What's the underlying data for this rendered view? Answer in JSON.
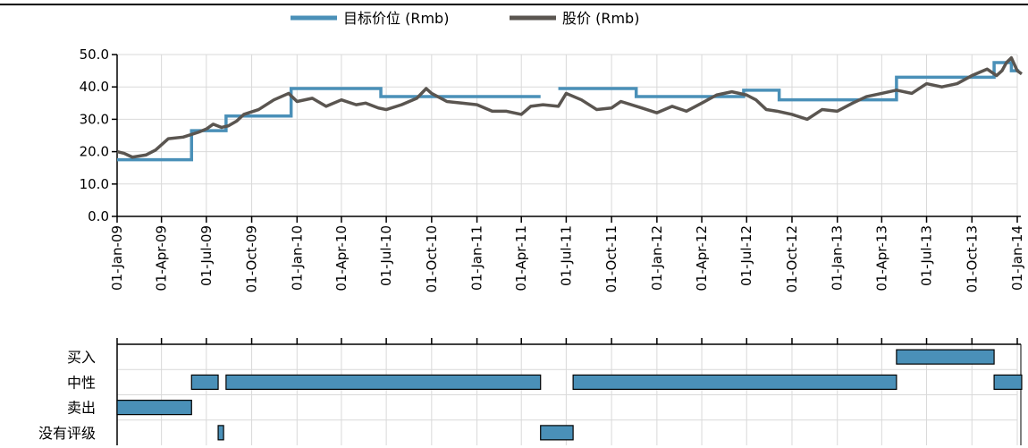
{
  "chart_data": [
    {
      "type": "line",
      "legend": [
        {
          "name": "目标价位 (Rmb)",
          "color": "#4a90b8"
        },
        {
          "name": "股价 (Rmb)",
          "color": "#5a5550"
        }
      ],
      "legend_position": "top-center",
      "ylim": [
        0,
        50
      ],
      "y_ticks": [
        "0.0",
        "10.0",
        "20.0",
        "30.0",
        "40.0",
        "50.0"
      ],
      "y_tick_values": [
        0,
        10,
        20,
        30,
        40,
        50
      ],
      "x_range": [
        "2009-01-01",
        "2014-01-01"
      ],
      "x_tick_dates": [
        "2009-01-01",
        "2009-04-01",
        "2009-07-01",
        "2009-10-01",
        "2010-01-01",
        "2010-04-01",
        "2010-07-01",
        "2010-10-01",
        "2011-01-01",
        "2011-04-01",
        "2011-07-01",
        "2011-10-01",
        "2012-01-01",
        "2012-04-01",
        "2012-07-01",
        "2012-10-01",
        "2013-01-01",
        "2013-04-01",
        "2013-07-01",
        "2013-10-01",
        "2014-01-01"
      ],
      "x_ticks": [
        "01-Jan-09",
        "01-Apr-09",
        "01-Jul-09",
        "01-Oct-09",
        "01-Jan-10",
        "01-Apr-10",
        "01-Jul-10",
        "01-Oct-10",
        "01-Jan-11",
        "01-Apr-11",
        "01-Jul-11",
        "01-Oct-11",
        "01-Jan-12",
        "01-Apr-12",
        "01-Jul-12",
        "01-Oct-12",
        "01-Jan-13",
        "01-Apr-13",
        "01-Jul-13",
        "01-Oct-13",
        "01-Jan-14"
      ],
      "grid": true,
      "series": [
        {
          "name": "目标价位 (Rmb)",
          "step": true,
          "segments": [
            {
              "start": "2009-01-01",
              "end": "2009-06-01",
              "value": 17.5
            },
            {
              "start": "2009-06-01",
              "end": "2009-08-10",
              "value": 26.5
            },
            {
              "start": "2009-08-10",
              "end": "2009-12-20",
              "value": 31.0
            },
            {
              "start": "2009-12-20",
              "end": "2010-06-20",
              "value": 39.5
            },
            {
              "start": "2010-06-20",
              "end": "2011-05-10",
              "value": 37.0
            },
            {
              "start": "2011-06-15",
              "end": "2011-11-20",
              "value": 39.5
            },
            {
              "start": "2011-11-20",
              "end": "2012-06-25",
              "value": 37.0
            },
            {
              "start": "2012-06-25",
              "end": "2012-09-05",
              "value": 39.0
            },
            {
              "start": "2012-09-05",
              "end": "2013-05-01",
              "value": 36.0
            },
            {
              "start": "2013-05-01",
              "end": "2013-11-15",
              "value": 43.0
            },
            {
              "start": "2013-11-15",
              "end": "2013-12-20",
              "value": 47.5
            },
            {
              "start": "2013-12-20",
              "end": "2014-01-05",
              "value": 45.0
            }
          ]
        },
        {
          "name": "股价 (Rmb)",
          "x": [
            "2009-01-01",
            "2009-01-15",
            "2009-02-01",
            "2009-03-01",
            "2009-03-20",
            "2009-04-15",
            "2009-05-15",
            "2009-06-15",
            "2009-07-01",
            "2009-07-15",
            "2009-08-01",
            "2009-08-15",
            "2009-09-01",
            "2009-09-15",
            "2009-10-15",
            "2009-11-15",
            "2009-12-15",
            "2010-01-01",
            "2010-02-01",
            "2010-03-01",
            "2010-04-01",
            "2010-05-01",
            "2010-05-20",
            "2010-06-15",
            "2010-07-01",
            "2010-08-01",
            "2010-09-01",
            "2010-09-20",
            "2010-10-01",
            "2010-11-01",
            "2010-12-01",
            "2011-01-01",
            "2011-02-01",
            "2011-03-01",
            "2011-04-01",
            "2011-04-20",
            "2011-05-15",
            "2011-06-15",
            "2011-07-01",
            "2011-08-01",
            "2011-09-01",
            "2011-10-01",
            "2011-10-20",
            "2011-12-01",
            "2012-01-01",
            "2012-02-01",
            "2012-03-01",
            "2012-04-01",
            "2012-05-01",
            "2012-06-01",
            "2012-07-01",
            "2012-07-20",
            "2012-08-10",
            "2012-09-01",
            "2012-10-01",
            "2012-11-01",
            "2012-12-01",
            "2013-01-01",
            "2013-02-01",
            "2013-03-01",
            "2013-04-01",
            "2013-05-01",
            "2013-06-01",
            "2013-07-01",
            "2013-08-01",
            "2013-09-01",
            "2013-10-01",
            "2013-11-01",
            "2013-11-20",
            "2013-12-01",
            "2013-12-10",
            "2013-12-20",
            "2014-01-01",
            "2014-01-10"
          ],
          "values": [
            20.0,
            19.5,
            18.3,
            19.0,
            20.5,
            24.0,
            24.5,
            26.0,
            27.0,
            28.5,
            27.5,
            28.0,
            29.5,
            31.5,
            33.0,
            36.0,
            38.0,
            35.5,
            36.5,
            34.0,
            36.0,
            34.5,
            35.0,
            33.5,
            33.0,
            34.5,
            36.5,
            39.5,
            38.0,
            35.5,
            35.0,
            34.5,
            32.5,
            32.5,
            31.5,
            34.0,
            34.5,
            34.0,
            38.0,
            36.0,
            33.0,
            33.5,
            35.5,
            33.5,
            32.0,
            34.0,
            32.5,
            35.0,
            37.5,
            38.5,
            37.5,
            36.0,
            33.0,
            32.5,
            31.5,
            30.0,
            33.0,
            32.5,
            35.0,
            37.0,
            38.0,
            39.0,
            38.0,
            41.0,
            40.0,
            41.0,
            43.5,
            45.5,
            43.5,
            45.0,
            47.5,
            49.0,
            45.0,
            44.0
          ]
        }
      ]
    },
    {
      "type": "bar",
      "orientation": "horizontal-timeline",
      "categories": [
        "买入",
        "中性",
        "卖出",
        "没有评级"
      ],
      "bar_color": "#4a90b8",
      "series": [
        {
          "category": "卖出",
          "start": "2009-01-01",
          "end": "2009-06-01"
        },
        {
          "category": "中性",
          "start": "2009-06-01",
          "end": "2009-07-25"
        },
        {
          "category": "没有评级",
          "start": "2009-07-25",
          "end": "2009-08-05"
        },
        {
          "category": "中性",
          "start": "2009-08-10",
          "end": "2011-05-10"
        },
        {
          "category": "没有评级",
          "start": "2011-05-10",
          "end": "2011-07-15"
        },
        {
          "category": "中性",
          "start": "2011-07-15",
          "end": "2013-05-01"
        },
        {
          "category": "买入",
          "start": "2013-05-01",
          "end": "2013-11-15"
        },
        {
          "category": "中性",
          "start": "2013-11-15",
          "end": "2014-01-10"
        }
      ]
    }
  ]
}
